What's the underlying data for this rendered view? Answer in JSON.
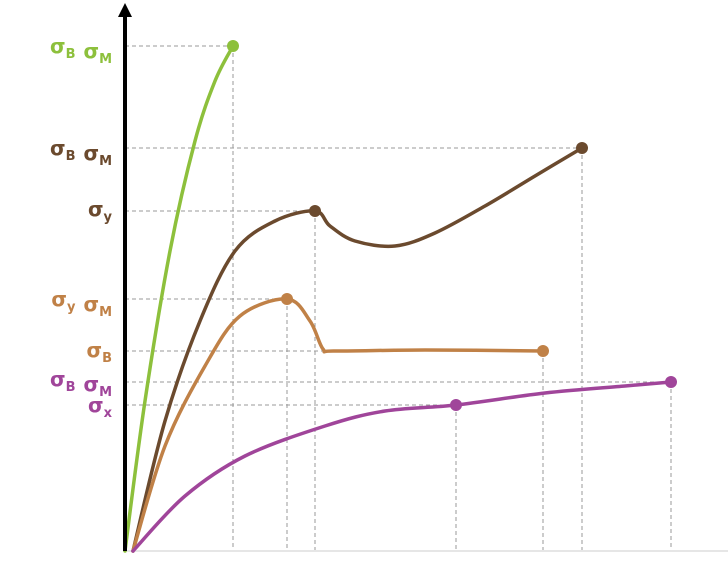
{
  "chart_data": {
    "type": "line",
    "title": "",
    "xlabel": "",
    "ylabel": "",
    "grid": false,
    "legend": "none",
    "axes": {
      "x_visible": false,
      "y_arrow": true
    },
    "xlim": [
      0,
      600
    ],
    "ylim": [
      0,
      550
    ],
    "series": [
      {
        "key": "green",
        "color": "#8dc03c",
        "points": [
          [
            0,
            0
          ],
          [
            20,
            150
          ],
          [
            45,
            300
          ],
          [
            70,
            410
          ],
          [
            90,
            470
          ],
          [
            108,
            505
          ]
        ],
        "markers": [
          [
            108,
            505
          ]
        ],
        "labels": [
          {
            "y": 505,
            "parts": [
              {
                "base": "σ",
                "sub": "В"
              },
              {
                "base": "σ",
                "sub": "М"
              }
            ]
          }
        ]
      },
      {
        "key": "brown",
        "color": "#6b4a2e",
        "points": [
          [
            8,
            0
          ],
          [
            40,
            130
          ],
          [
            75,
            230
          ],
          [
            110,
            300
          ],
          [
            150,
            330
          ],
          [
            190,
            340
          ],
          [
            205,
            325
          ],
          [
            230,
            310
          ],
          [
            270,
            305
          ],
          [
            310,
            318
          ],
          [
            360,
            345
          ],
          [
            410,
            375
          ],
          [
            457,
            403
          ]
        ],
        "markers": [
          [
            190,
            340
          ],
          [
            457,
            403
          ]
        ],
        "labels": [
          {
            "y": 403,
            "parts": [
              {
                "base": "σ",
                "sub": "В"
              },
              {
                "base": "σ",
                "sub": "М"
              }
            ]
          },
          {
            "y": 342,
            "parts": [
              {
                "base": "σ",
                "sub": "у"
              }
            ]
          }
        ]
      },
      {
        "key": "tan",
        "color": "#c08147",
        "points": [
          [
            8,
            0
          ],
          [
            40,
            105
          ],
          [
            80,
            185
          ],
          [
            115,
            235
          ],
          [
            162,
            252
          ],
          [
            185,
            230
          ],
          [
            198,
            202
          ],
          [
            210,
            200
          ],
          [
            300,
            201
          ],
          [
            418,
            200
          ]
        ],
        "markers": [
          [
            162,
            252
          ],
          [
            418,
            200
          ]
        ],
        "labels": [
          {
            "y": 252,
            "parts": [
              {
                "base": "σ",
                "sub": "у"
              },
              {
                "base": "σ",
                "sub": "М"
              }
            ]
          },
          {
            "y": 201,
            "parts": [
              {
                "base": "σ",
                "sub": "В"
              }
            ]
          }
        ]
      },
      {
        "key": "purple",
        "color": "#a0459a",
        "points": [
          [
            8,
            0
          ],
          [
            60,
            55
          ],
          [
            120,
            95
          ],
          [
            200,
            125
          ],
          [
            260,
            140
          ],
          [
            331,
            146
          ],
          [
            420,
            158
          ],
          [
            500,
            165
          ],
          [
            546,
            169
          ]
        ],
        "markers": [
          [
            331,
            146
          ],
          [
            546,
            169
          ]
        ],
        "labels": [
          {
            "y": 172,
            "parts": [
              {
                "base": "σ",
                "sub": "В"
              },
              {
                "base": "σ",
                "sub": "М"
              }
            ]
          },
          {
            "y": 146,
            "parts": [
              {
                "base": "σ",
                "sub": "х"
              }
            ]
          }
        ]
      }
    ]
  }
}
